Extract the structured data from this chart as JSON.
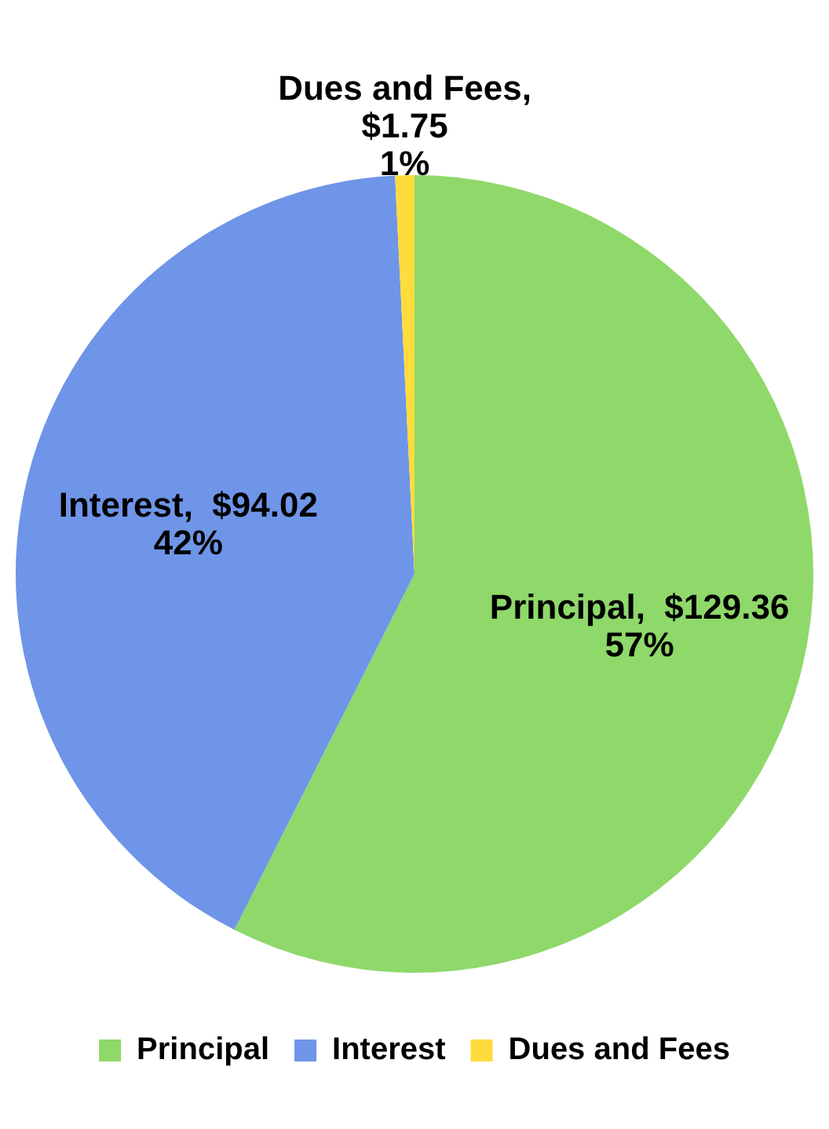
{
  "chart_data": {
    "type": "pie",
    "categories": [
      "Principal",
      "Interest",
      "Dues and Fees"
    ],
    "values": [
      129.36,
      94.02,
      1.75
    ],
    "colors": [
      "#8fd86a",
      "#6f95e8",
      "#ffdc3c"
    ],
    "value_labels": [
      "Principal,  $129.36\n57%",
      "Interest,  $94.02\n42%",
      "Dues and Fees,\n$1.75\n1%"
    ],
    "legend": "bottom"
  }
}
